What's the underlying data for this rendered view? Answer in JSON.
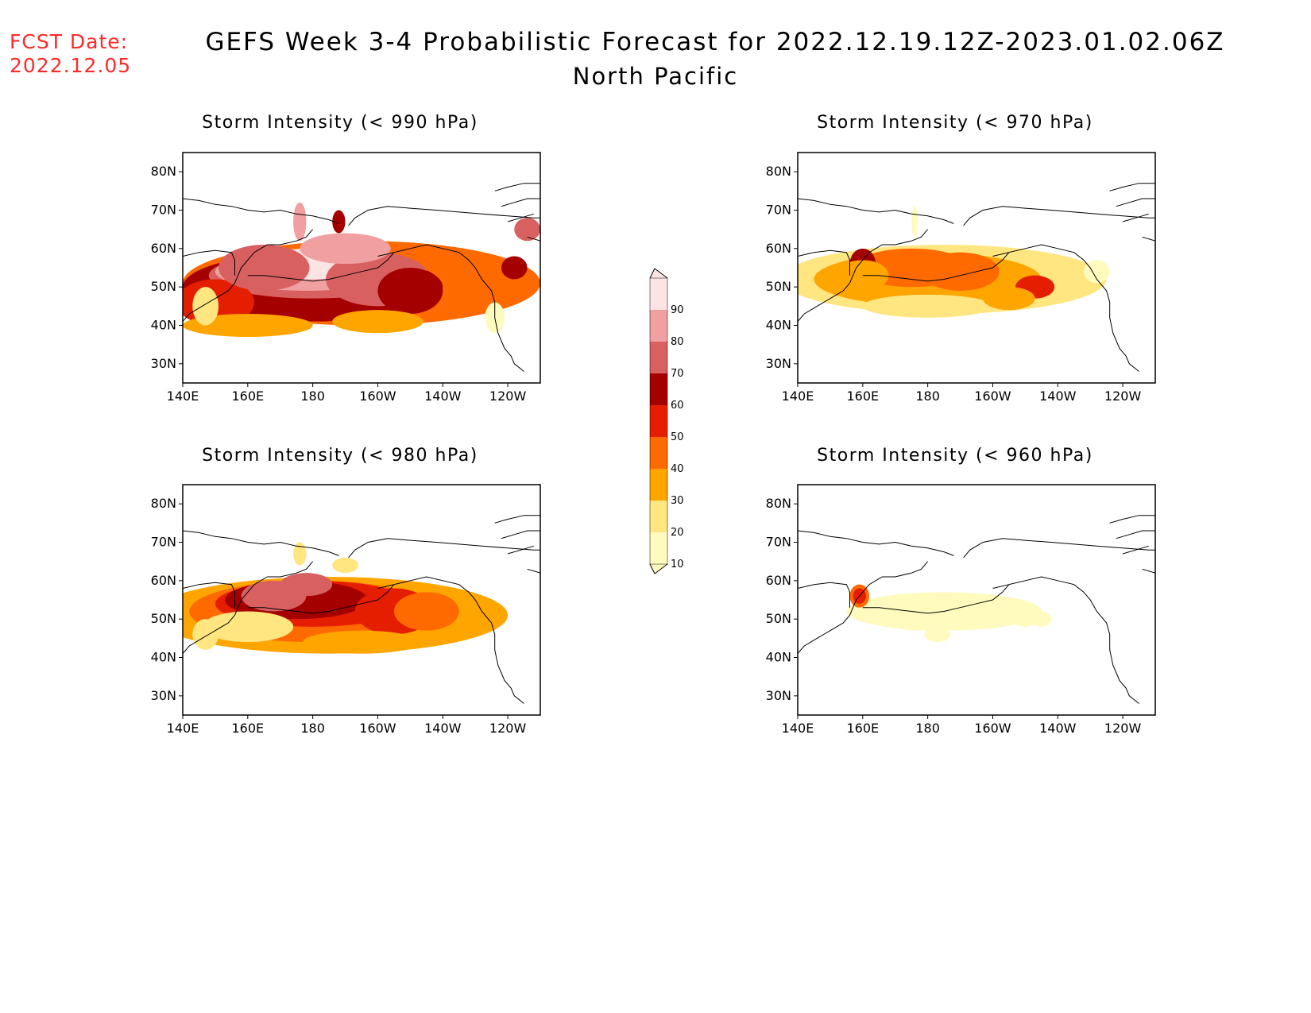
{
  "header": {
    "fcst_label": "FCST Date:",
    "fcst_date": "2022.12.05",
    "title": "GEFS Week 3-4 Probabilistic Forecast for 2022.12.19.12Z-2023.01.02.06Z",
    "subtitle": "North Pacific"
  },
  "axes": {
    "lat_labels": [
      "80N",
      "70N",
      "60N",
      "50N",
      "40N",
      "30N"
    ],
    "lon_labels": [
      "140E",
      "160E",
      "180",
      "160W",
      "140W",
      "120W"
    ]
  },
  "panels": [
    {
      "id": "p990",
      "title": "Storm Intensity (< 990 hPa)",
      "level": "high"
    },
    {
      "id": "p970",
      "title": "Storm Intensity (< 970 hPa)",
      "level": "mid"
    },
    {
      "id": "p980",
      "title": "Storm Intensity (< 980 hPa)",
      "level": "midhigh"
    },
    {
      "id": "p960",
      "title": "Storm Intensity (< 960 hPa)",
      "level": "low"
    }
  ],
  "colorbar": {
    "levels": [
      "10",
      "20",
      "30",
      "40",
      "50",
      "60",
      "70",
      "80",
      "90"
    ],
    "colors": [
      "#fffbbf",
      "#ffe680",
      "#ffa500",
      "#ff6a00",
      "#e61e00",
      "#a50000",
      "#d96060",
      "#f0a0a0",
      "#fde4e4"
    ]
  }
}
